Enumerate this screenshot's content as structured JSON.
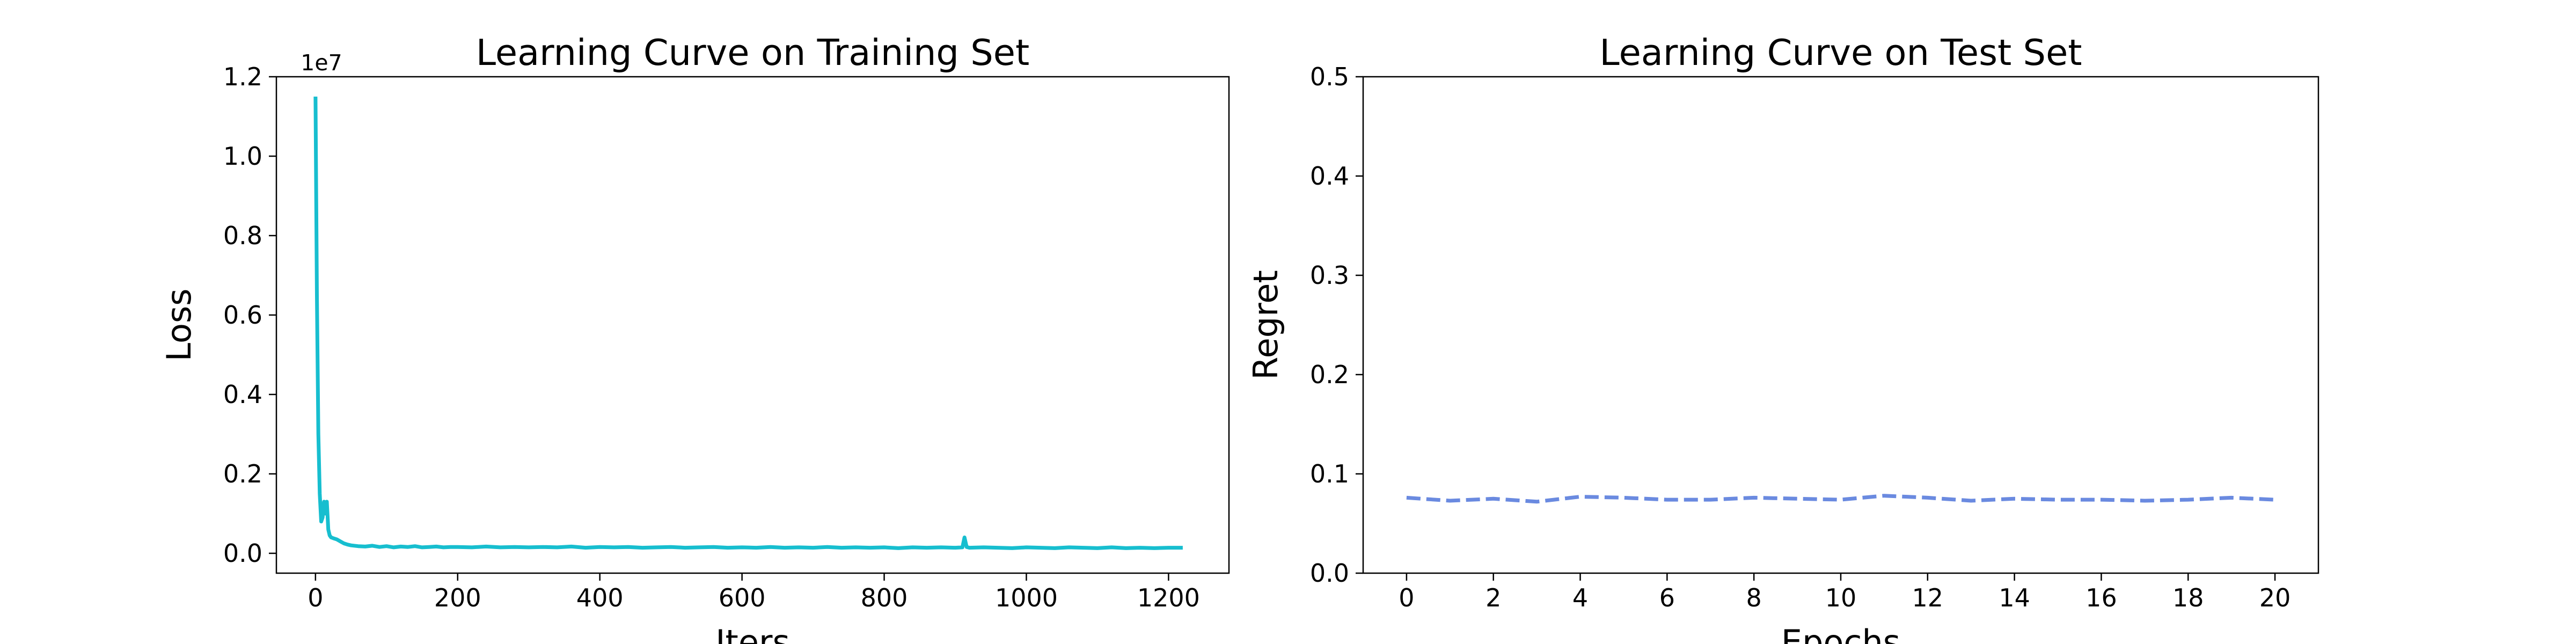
{
  "chart_data": [
    {
      "type": "line",
      "title": "Learning Curve on Training Set",
      "xlabel": "Iters",
      "ylabel": "Loss",
      "y_offset_label": "1e7",
      "xlim": [
        -55,
        1285
      ],
      "ylim": [
        -0.05,
        1.2
      ],
      "xticks": [
        0,
        200,
        400,
        600,
        800,
        1000,
        1200
      ],
      "yticks": [
        0.0,
        0.2,
        0.4,
        0.6,
        0.8,
        1.0,
        1.2
      ],
      "ytick_labels": [
        "0.0",
        "0.2",
        "0.4",
        "0.6",
        "0.8",
        "1.0",
        "1.2"
      ],
      "grid": false,
      "series": [
        {
          "color": "#17becf",
          "line_style": "solid",
          "x": [
            0,
            2,
            4,
            6,
            8,
            10,
            12,
            14,
            16,
            18,
            20,
            22,
            25,
            30,
            35,
            40,
            45,
            50,
            60,
            70,
            80,
            90,
            100,
            110,
            120,
            130,
            140,
            150,
            160,
            170,
            180,
            190,
            200,
            220,
            240,
            260,
            280,
            300,
            320,
            340,
            360,
            380,
            400,
            420,
            440,
            460,
            480,
            500,
            520,
            540,
            560,
            580,
            600,
            620,
            640,
            660,
            680,
            700,
            720,
            740,
            760,
            780,
            800,
            820,
            840,
            860,
            880,
            900,
            910,
            913,
            916,
            920,
            940,
            960,
            980,
            1000,
            1020,
            1040,
            1060,
            1080,
            1100,
            1120,
            1140,
            1160,
            1180,
            1200,
            1220
          ],
          "values": [
            1.15,
            0.65,
            0.3,
            0.15,
            0.08,
            0.09,
            0.13,
            0.1,
            0.13,
            0.06,
            0.045,
            0.04,
            0.038,
            0.035,
            0.03,
            0.025,
            0.022,
            0.02,
            0.018,
            0.017,
            0.019,
            0.016,
            0.018,
            0.015,
            0.017,
            0.016,
            0.018,
            0.015,
            0.016,
            0.017,
            0.015,
            0.016,
            0.016,
            0.015,
            0.017,
            0.015,
            0.016,
            0.015,
            0.016,
            0.015,
            0.017,
            0.014,
            0.016,
            0.015,
            0.016,
            0.014,
            0.015,
            0.016,
            0.014,
            0.015,
            0.016,
            0.014,
            0.015,
            0.014,
            0.016,
            0.014,
            0.015,
            0.014,
            0.016,
            0.014,
            0.015,
            0.014,
            0.015,
            0.013,
            0.015,
            0.014,
            0.015,
            0.014,
            0.015,
            0.04,
            0.016,
            0.014,
            0.015,
            0.014,
            0.013,
            0.015,
            0.014,
            0.013,
            0.015,
            0.014,
            0.013,
            0.015,
            0.013,
            0.014,
            0.013,
            0.014,
            0.014
          ]
        }
      ]
    },
    {
      "type": "line",
      "title": "Learning Curve on Test Set",
      "xlabel": "Epochs",
      "ylabel": "Regret",
      "xlim": [
        -1,
        21
      ],
      "ylim": [
        0.0,
        0.5
      ],
      "xticks": [
        0,
        2,
        4,
        6,
        8,
        10,
        12,
        14,
        16,
        18,
        20
      ],
      "yticks": [
        0.0,
        0.1,
        0.2,
        0.3,
        0.4,
        0.5
      ],
      "ytick_labels": [
        "0.0",
        "0.1",
        "0.2",
        "0.3",
        "0.4",
        "0.5"
      ],
      "grid": false,
      "series": [
        {
          "color": "#6a8ae0",
          "line_style": "dashed",
          "x": [
            0,
            1,
            2,
            3,
            4,
            5,
            6,
            7,
            8,
            9,
            10,
            11,
            12,
            13,
            14,
            15,
            16,
            17,
            18,
            19,
            20
          ],
          "values": [
            0.076,
            0.073,
            0.075,
            0.072,
            0.077,
            0.076,
            0.074,
            0.074,
            0.076,
            0.075,
            0.074,
            0.078,
            0.076,
            0.073,
            0.075,
            0.074,
            0.074,
            0.073,
            0.074,
            0.076,
            0.074
          ]
        }
      ]
    }
  ]
}
